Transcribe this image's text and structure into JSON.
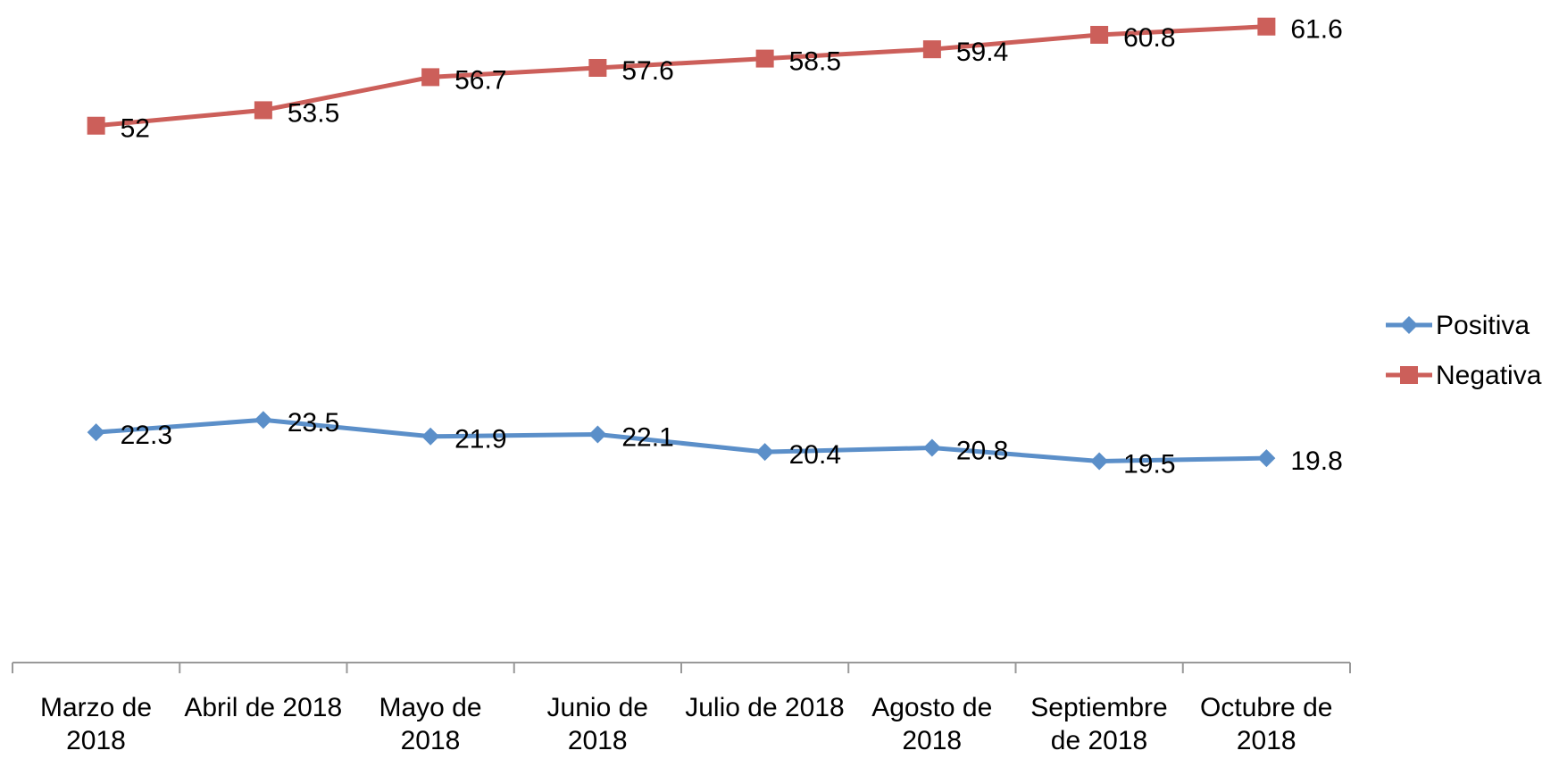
{
  "chart_data": {
    "type": "line",
    "categories": [
      "Marzo de 2018",
      "Abril de 2018",
      "Mayo de 2018",
      "Junio de 2018",
      "Julio de 2018",
      "Agosto de 2018",
      "Septiembre de 2018",
      "Octubre de 2018"
    ],
    "series": [
      {
        "name": "Positiva",
        "color": "#5b8fc9",
        "marker": "diamond",
        "values": [
          22.3,
          23.5,
          21.9,
          22.1,
          20.4,
          20.8,
          19.5,
          19.8
        ]
      },
      {
        "name": "Negativa",
        "color": "#cc5f5a",
        "marker": "square",
        "values": [
          52,
          53.5,
          56.7,
          57.6,
          58.5,
          59.4,
          60.8,
          61.6
        ]
      }
    ],
    "ylim": [
      0,
      64
    ],
    "legend": "right"
  }
}
